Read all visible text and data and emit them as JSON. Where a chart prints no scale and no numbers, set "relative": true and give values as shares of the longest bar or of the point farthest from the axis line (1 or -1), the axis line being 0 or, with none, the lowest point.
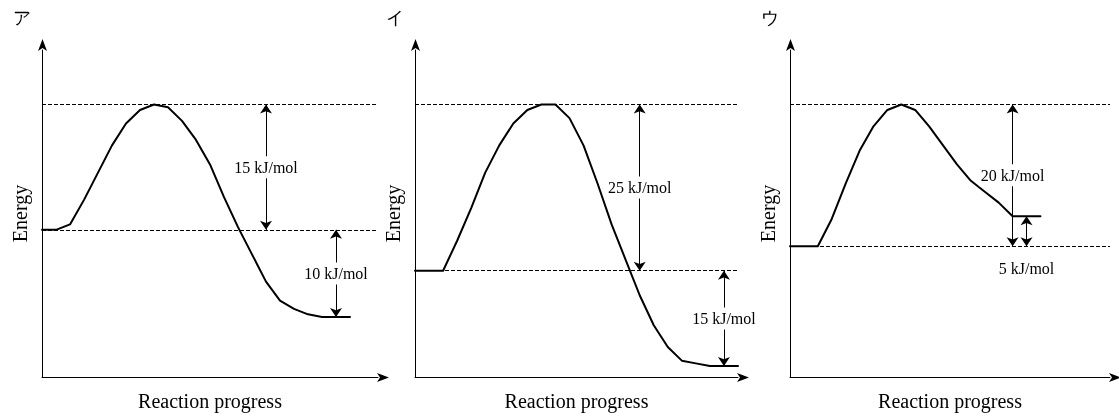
{
  "chart_data": [
    {
      "type": "line",
      "title": "ア",
      "xlabel": "Reaction progress",
      "ylabel": "Energy",
      "relative": true,
      "grid": false,
      "marker": "none",
      "line_style": "solid",
      "categories": [
        null,
        null,
        null,
        null,
        null,
        null,
        null,
        null,
        null,
        null,
        null,
        null,
        null,
        null,
        null,
        null,
        null,
        null,
        null,
        null,
        null,
        null,
        null,
        null,
        null
      ],
      "series": [
        {
          "color": "#000000",
          "values": [
            0.54,
            0.54,
            0.56,
            0.65,
            0.75,
            0.85,
            0.93,
            0.98,
            1,
            0.99,
            0.94,
            0.87,
            0.78,
            0.66,
            0.55,
            0.45,
            0.35,
            0.28,
            0.25,
            0.23,
            0.22,
            0.22,
            0.22,
            null,
            null
          ]
        }
      ],
      "ref_lines": [
        {
          "axis": "y",
          "value": 0.54,
          "line_style": "dashed"
        },
        {
          "axis": "y",
          "value": 1,
          "line_style": "dashed"
        }
      ],
      "annotations": [
        "15 kJ/mol",
        "10 kJ/mol"
      ]
    },
    {
      "type": "line",
      "title": "イ",
      "xlabel": "Reaction progress",
      "ylabel": "Energy",
      "relative": true,
      "grid": false,
      "marker": "none",
      "line_style": "solid",
      "categories": [
        null,
        null,
        null,
        null,
        null,
        null,
        null,
        null,
        null,
        null,
        null,
        null,
        null,
        null,
        null,
        null,
        null,
        null,
        null,
        null,
        null,
        null,
        null,
        null
      ],
      "series": [
        {
          "color": "#000000",
          "values": [
            0.39,
            0.39,
            0.39,
            0.5,
            0.62,
            0.75,
            0.85,
            0.93,
            0.98,
            1,
            1,
            0.95,
            0.85,
            0.71,
            0.56,
            0.43,
            0.3,
            0.19,
            0.11,
            0.06,
            0.05,
            0.04,
            0.04,
            0.04
          ]
        }
      ],
      "ref_lines": [
        {
          "axis": "y",
          "value": 0.39,
          "line_style": "dashed"
        },
        {
          "axis": "y",
          "value": 1,
          "line_style": "dashed"
        }
      ],
      "annotations": [
        "25 kJ/mol",
        "15 kJ/mol"
      ]
    },
    {
      "type": "line",
      "title": "ウ",
      "xlabel": "Reaction progress",
      "ylabel": "Energy",
      "relative": true,
      "grid": false,
      "marker": "none",
      "line_style": "solid",
      "categories": [
        null,
        null,
        null,
        null,
        null,
        null,
        null,
        null,
        null,
        null,
        null,
        null,
        null,
        null,
        null,
        null,
        null,
        null,
        null,
        null,
        null,
        null,
        null,
        null
      ],
      "series": [
        {
          "color": "#000000",
          "values": [
            0.48,
            0.48,
            0.48,
            0.58,
            0.71,
            0.83,
            0.92,
            0.98,
            1,
            0.98,
            0.92,
            0.85,
            0.78,
            0.72,
            0.68,
            0.64,
            0.59,
            0.59,
            0.59,
            null,
            null,
            null,
            null,
            null
          ]
        }
      ],
      "ref_lines": [
        {
          "axis": "y",
          "value": 0.48,
          "line_style": "dashed"
        },
        {
          "axis": "y",
          "value": 1,
          "line_style": "dashed"
        }
      ],
      "annotations": [
        "20 kJ/mol",
        "5 kJ/mol"
      ]
    }
  ]
}
